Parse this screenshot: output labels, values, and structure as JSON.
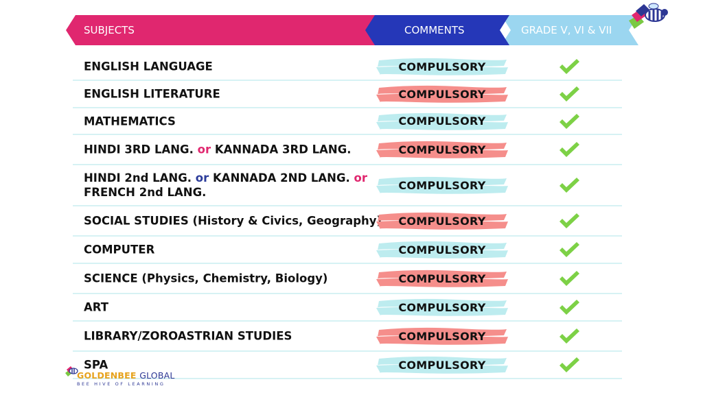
{
  "header": {
    "subjects_label": "SUBJECTS",
    "comments_label": "COMMENTS",
    "grade_label": "GRADE V, VI & VII",
    "colors": {
      "subjects": "#e0276f",
      "comments": "#2537b8",
      "grade": "#9bd6f0"
    }
  },
  "rows": [
    {
      "parts": [
        {
          "text": "ENGLISH LANGUAGE"
        }
      ],
      "comment": "COMPULSORY",
      "brush": "teal",
      "included": true
    },
    {
      "parts": [
        {
          "text": "ENGLISH LITERATURE"
        }
      ],
      "comment": "COMPULSORY",
      "brush": "coral",
      "included": true
    },
    {
      "parts": [
        {
          "text": "MATHEMATICS"
        }
      ],
      "comment": "COMPULSORY",
      "brush": "teal",
      "included": true
    },
    {
      "parts": [
        {
          "text": "HINDI 3RD LANG. "
        },
        {
          "text": "or",
          "style": "pink"
        },
        {
          "text": " KANNADA 3RD LANG."
        }
      ],
      "comment": "COMPULSORY",
      "brush": "coral",
      "included": true
    },
    {
      "parts": [
        {
          "text": "HINDI 2nd LANG. "
        },
        {
          "text": "or",
          "style": "blue"
        },
        {
          "text": " KANNADA 2ND LANG. "
        },
        {
          "text": "or",
          "style": "pink"
        },
        {
          "text": " FRENCH 2nd LANG."
        }
      ],
      "comment": "COMPULSORY",
      "brush": "teal",
      "included": true
    },
    {
      "parts": [
        {
          "text": "SOCIAL STUDIES (History & Civics, Geography)"
        }
      ],
      "comment": "COMPULSORY",
      "brush": "coral",
      "included": true
    },
    {
      "parts": [
        {
          "text": "COMPUTER"
        }
      ],
      "comment": "COMPULSORY",
      "brush": "teal",
      "included": true
    },
    {
      "parts": [
        {
          "text": "SCIENCE (Physics, Chemistry, Biology)"
        }
      ],
      "comment": "COMPULSORY",
      "brush": "coral",
      "included": true
    },
    {
      "parts": [
        {
          "text": "ART"
        }
      ],
      "comment": "COMPULSORY",
      "brush": "teal",
      "included": true
    },
    {
      "parts": [
        {
          "text": "LIBRARY/ZOROASTRIAN STUDIES"
        }
      ],
      "comment": "COMPULSORY",
      "brush": "coral",
      "included": true
    },
    {
      "parts": [
        {
          "text": "SPA"
        }
      ],
      "comment": "COMPULSORY",
      "brush": "teal",
      "included": true
    }
  ],
  "brush_colors": {
    "teal": "#bdecef",
    "coral": "#f58e8b"
  },
  "check_color": "#7dd146",
  "footer": {
    "brand_main": "GOLDENBEE",
    "brand_secondary": "GLOBAL",
    "tagline": "BEE HIVE OF LEARNING"
  }
}
